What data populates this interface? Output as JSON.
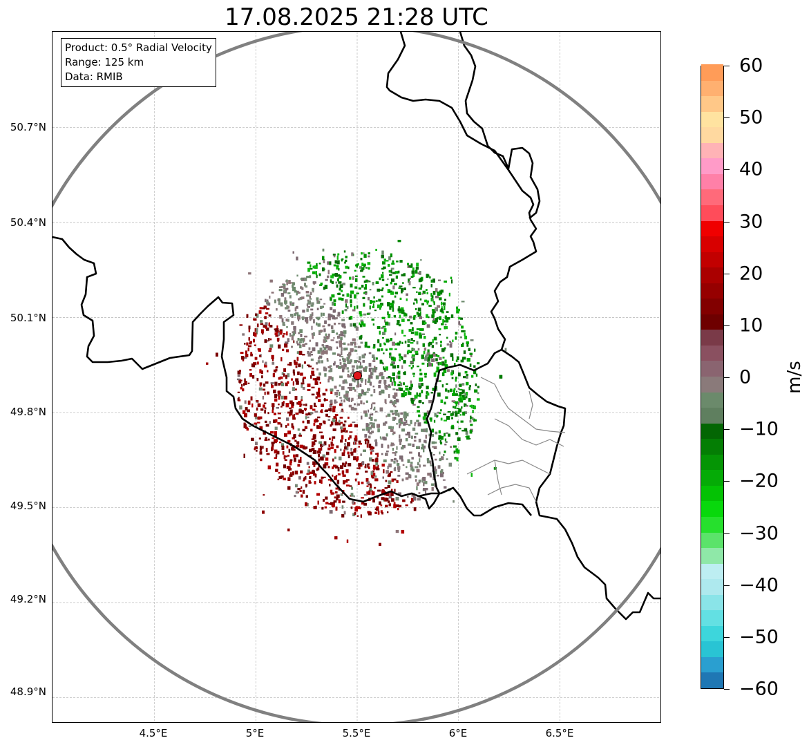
{
  "title": "17.08.2025 21:28 UTC",
  "info_box": {
    "product": "Product: 0.5° Radial Velocity",
    "range": "Range: 125 km",
    "data": "Data: RMIB"
  },
  "axes": {
    "lat_ticks": [
      "50.7°N",
      "50.4°N",
      "50.1°N",
      "49.8°N",
      "49.5°N",
      "49.2°N",
      "48.9°N"
    ],
    "lon_ticks": [
      "4.5°E",
      "5°E",
      "5.5°E",
      "6°E",
      "6.5°E"
    ]
  },
  "colorbar": {
    "unit": "m/s",
    "ticks": [
      "60",
      "50",
      "40",
      "30",
      "20",
      "10",
      "0",
      "−10",
      "−20",
      "−30",
      "−40",
      "−50",
      "−60"
    ],
    "range": [
      -60,
      60
    ],
    "colors": [
      "#1f77b4",
      "#2a9fd0",
      "#29c4d4",
      "#3dd6dc",
      "#63e0e3",
      "#8ae4e8",
      "#aee9ee",
      "#bdeef2",
      "#8fe8a8",
      "#5be36a",
      "#26e02d",
      "#08d80c",
      "#04c204",
      "#05ab06",
      "#059505",
      "#047e04",
      "#036603",
      "#5f7f5f",
      "#6b8a6b",
      "#8a7a7a",
      "#8a6470",
      "#8a5060",
      "#7a3a48",
      "#6e0000",
      "#820000",
      "#960000",
      "#aa0000",
      "#c20000",
      "#d80000",
      "#f00000",
      "#ff4c5a",
      "#ff6a7a",
      "#ff80a8",
      "#ff9bc8",
      "#ffb3b6",
      "#ffd9a0",
      "#ffe3a0",
      "#ffc888",
      "#ffb070",
      "#ff9c58"
    ]
  },
  "radar_site": {
    "lat": 49.914,
    "lon": 5.505,
    "color": "#e0151b"
  },
  "range_ring": {
    "radius_km": 125,
    "color": "#808080"
  },
  "map_colors": {
    "border": "#000000",
    "admin": "#888888",
    "grid": "#bfbfbf"
  }
}
